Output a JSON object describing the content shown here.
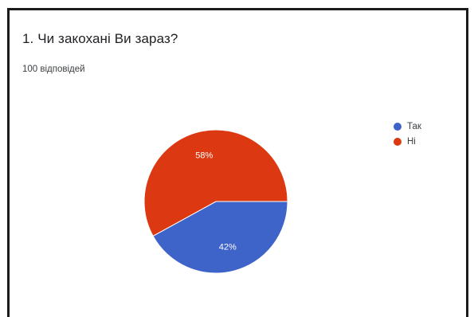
{
  "title": "1. Чи закохані Ви зараз?",
  "subtitle": "100 відповідей",
  "chart_data": {
    "type": "pie",
    "title": "1. Чи закохані Ви зараз?",
    "categories": [
      "Так",
      "Ні"
    ],
    "values": [
      42,
      58
    ],
    "labels": [
      "42%",
      "58%"
    ],
    "colors": [
      "#3e64c9",
      "#dc3912"
    ],
    "label_color": "#ffffff",
    "legend": "right"
  }
}
